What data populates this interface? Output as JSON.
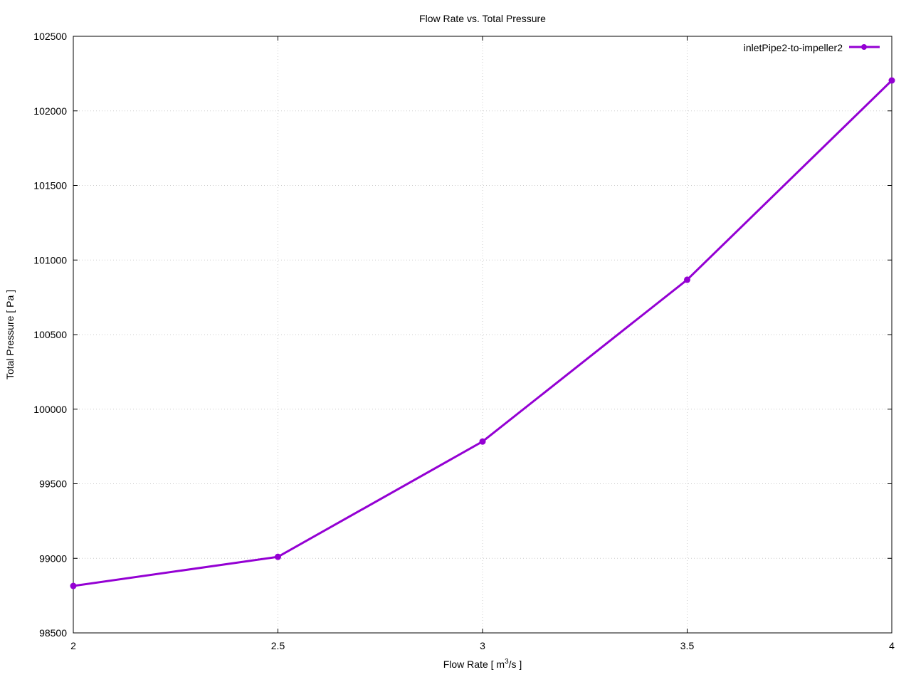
{
  "chart_data": {
    "type": "line",
    "title": "Flow Rate vs. Total Pressure",
    "xlabel": "Flow Rate [ m",
    "xlabel_sup": "3",
    "xlabel_tail": "/s ]",
    "ylabel": "Total Pressure [ Pa ]",
    "xlim": [
      2,
      4
    ],
    "ylim": [
      98500,
      102500
    ],
    "xticks": [
      "2",
      "2.5",
      "3",
      "3.5",
      "4"
    ],
    "yticks": [
      "98500",
      "99000",
      "99500",
      "100000",
      "100500",
      "101000",
      "101500",
      "102000",
      "102500"
    ],
    "grid": true,
    "legend_position": "top-right",
    "series": [
      {
        "name": "inletPipe2-to-impeller2",
        "color": "#9400d3",
        "x": [
          2,
          2.5,
          3,
          3.5,
          4
        ],
        "y": [
          98815,
          99010,
          99783,
          100868,
          102204
        ]
      }
    ]
  }
}
